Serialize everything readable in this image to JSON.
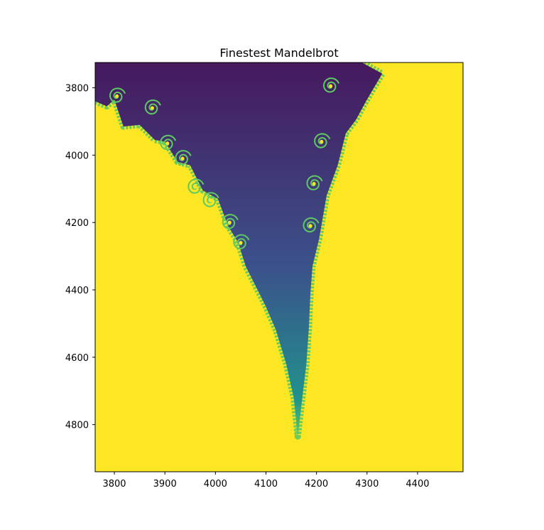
{
  "chart_data": {
    "type": "heatmap",
    "title": "Finestest Mandelbrot",
    "xlabel": "",
    "ylabel": "",
    "colormap": "viridis",
    "xlim": [
      3762,
      4490
    ],
    "ylim": [
      4940,
      3725
    ],
    "y_axis_inverted": true,
    "grid": false,
    "x_ticks": [
      3800,
      3900,
      4000,
      4100,
      4200,
      4300,
      4400
    ],
    "y_ticks": [
      3800,
      4000,
      4200,
      4400,
      4600,
      4800
    ],
    "colors": {
      "background_max": "#fde725",
      "interior_low": "#46195e",
      "body_mid": "#3b528b",
      "tip": "#21918c",
      "boundary": "#5ec962"
    },
    "region_outline": {
      "left_edge": [
        [
          3762,
          3840
        ],
        [
          3785,
          3855
        ],
        [
          3800,
          3835
        ],
        [
          3818,
          3915
        ],
        [
          3850,
          3910
        ],
        [
          3880,
          3955
        ],
        [
          3900,
          3960
        ],
        [
          3925,
          4020
        ],
        [
          3950,
          4030
        ],
        [
          3975,
          4105
        ],
        [
          4005,
          4130
        ],
        [
          4025,
          4210
        ],
        [
          4045,
          4260
        ],
        [
          4060,
          4330
        ],
        [
          4080,
          4390
        ],
        [
          4100,
          4450
        ],
        [
          4120,
          4520
        ],
        [
          4140,
          4620
        ],
        [
          4155,
          4720
        ],
        [
          4163,
          4835
        ]
      ],
      "right_edge": [
        [
          4163,
          4835
        ],
        [
          4172,
          4720
        ],
        [
          4180,
          4620
        ],
        [
          4185,
          4510
        ],
        [
          4188,
          4410
        ],
        [
          4192,
          4330
        ],
        [
          4205,
          4250
        ],
        [
          4220,
          4120
        ],
        [
          4242,
          4030
        ],
        [
          4258,
          3935
        ],
        [
          4278,
          3895
        ],
        [
          4298,
          3840
        ],
        [
          4330,
          3758
        ],
        [
          4290,
          3725
        ]
      ],
      "top_edge_x": [
        3762,
        4290
      ]
    },
    "spiral_features": [
      {
        "x": 3805,
        "y": 3825
      },
      {
        "x": 3875,
        "y": 3860
      },
      {
        "x": 3905,
        "y": 3965
      },
      {
        "x": 3935,
        "y": 4010
      },
      {
        "x": 3960,
        "y": 4095
      },
      {
        "x": 3990,
        "y": 4135
      },
      {
        "x": 4028,
        "y": 4200
      },
      {
        "x": 4050,
        "y": 4260
      },
      {
        "x": 4228,
        "y": 3795
      },
      {
        "x": 4210,
        "y": 3960
      },
      {
        "x": 4195,
        "y": 4085
      },
      {
        "x": 4188,
        "y": 4210
      }
    ]
  }
}
